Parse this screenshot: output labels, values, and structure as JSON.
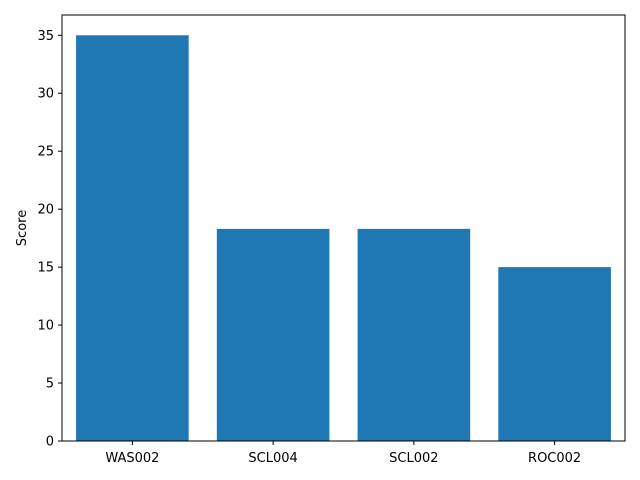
{
  "chart_data": {
    "type": "bar",
    "title": "",
    "xlabel": "",
    "ylabel": "Score",
    "categories": [
      "WAS002",
      "SCL004",
      "SCL002",
      "ROC002"
    ],
    "values": [
      35,
      18.3,
      18.3,
      15
    ],
    "ylim": [
      0,
      36.75
    ],
    "yticks": [
      0,
      5,
      10,
      15,
      20,
      25,
      30,
      35
    ],
    "ytick_labels": [
      "0",
      "5",
      "10",
      "15",
      "20",
      "25",
      "30",
      "35"
    ],
    "bar_color": "#1f77b4",
    "grid": false,
    "legend": "none"
  }
}
